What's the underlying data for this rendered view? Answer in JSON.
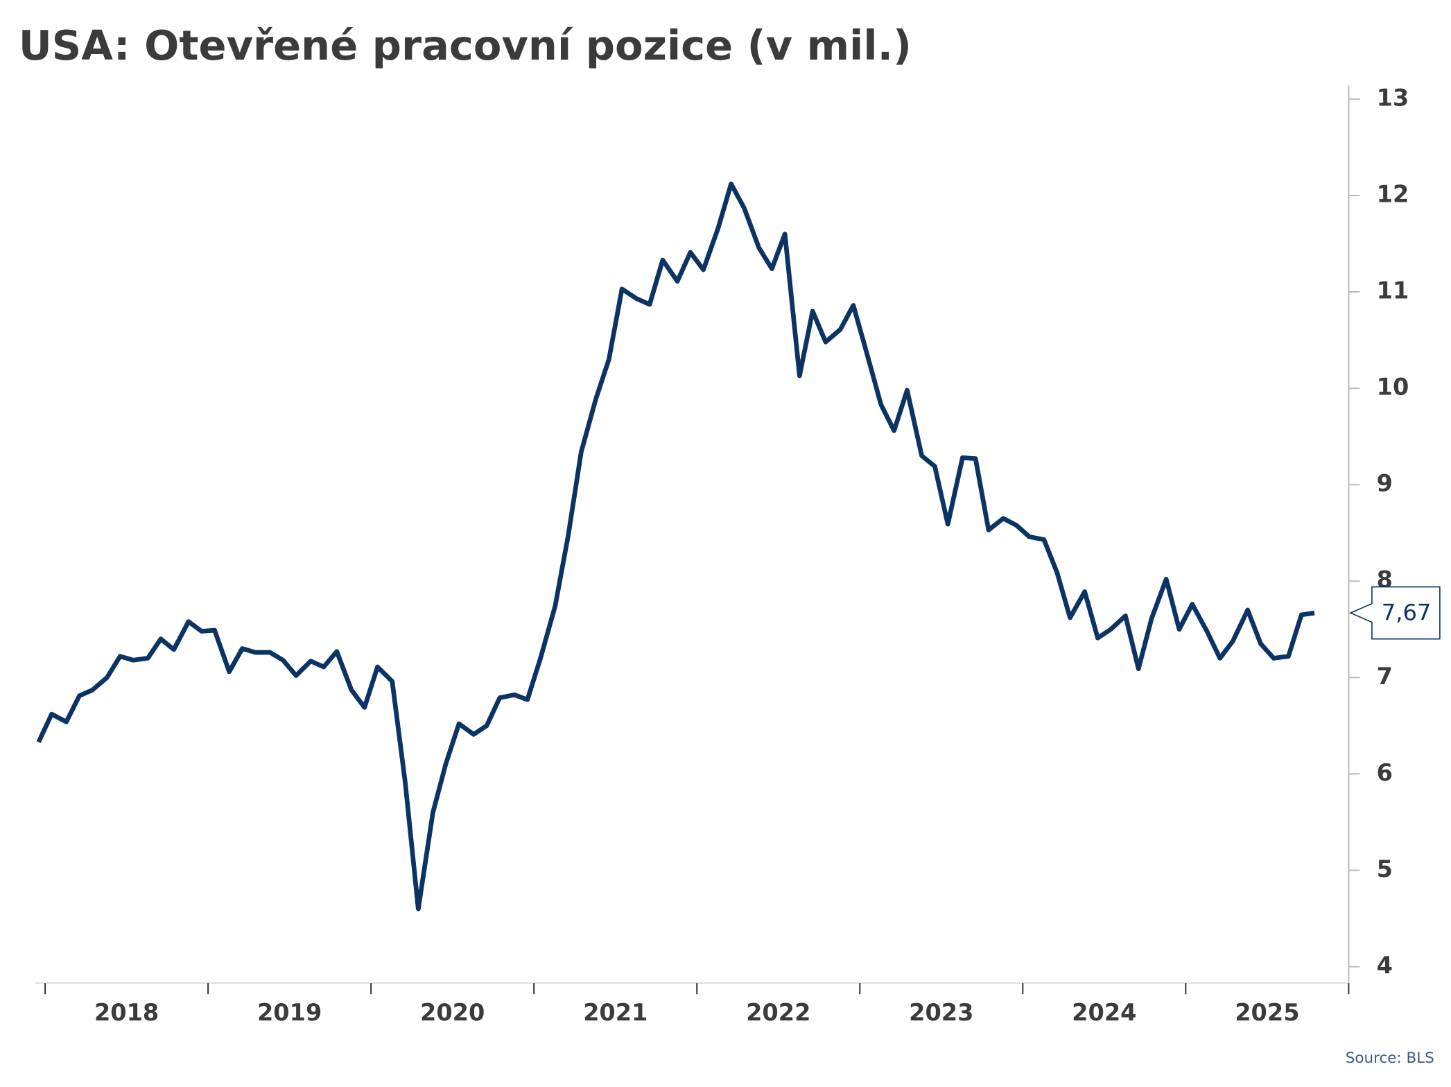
{
  "chart_data": {
    "type": "line",
    "title": "USA: Otevřené pracovní pozice (v mil.)",
    "source": "Source: BLS",
    "x": [
      2017.96,
      2018.04,
      2018.13,
      2018.21,
      2018.29,
      2018.38,
      2018.46,
      2018.54,
      2018.63,
      2018.71,
      2018.79,
      2018.88,
      2018.96,
      2019.04,
      2019.13,
      2019.21,
      2019.29,
      2019.38,
      2019.46,
      2019.54,
      2019.63,
      2019.71,
      2019.79,
      2019.88,
      2019.96,
      2020.04,
      2020.13,
      2020.21,
      2020.29,
      2020.38,
      2020.46,
      2020.54,
      2020.63,
      2020.71,
      2020.79,
      2020.88,
      2020.96,
      2021.04,
      2021.13,
      2021.21,
      2021.29,
      2021.38,
      2021.46,
      2021.54,
      2021.63,
      2021.71,
      2021.79,
      2021.88,
      2021.96,
      2022.04,
      2022.13,
      2022.21,
      2022.29,
      2022.38,
      2022.46,
      2022.54,
      2022.63,
      2022.71,
      2022.79,
      2022.88,
      2022.96,
      2023.04,
      2023.13,
      2023.21,
      2023.29,
      2023.38,
      2023.46,
      2023.54,
      2023.63,
      2023.71,
      2023.79,
      2023.88,
      2023.96,
      2024.04,
      2024.13,
      2024.21,
      2024.29,
      2024.38,
      2024.46,
      2024.54,
      2024.63,
      2024.71,
      2024.79,
      2024.88,
      2024.96,
      2025.04,
      2025.13,
      2025.21,
      2025.29,
      2025.38,
      2025.46,
      2025.54,
      2025.63,
      2025.71,
      2025.79
    ],
    "series": [
      {
        "color": "#0b3364",
        "values": [
          6.33,
          6.62,
          6.54,
          6.81,
          6.87,
          7.0,
          7.22,
          7.18,
          7.2,
          7.4,
          7.29,
          7.58,
          7.48,
          7.49,
          7.06,
          7.3,
          7.26,
          7.26,
          7.18,
          7.02,
          7.17,
          7.11,
          7.27,
          6.87,
          6.69,
          7.11,
          6.96,
          5.91,
          4.6,
          5.6,
          6.11,
          6.52,
          6.41,
          6.5,
          6.79,
          6.82,
          6.77,
          7.2,
          7.74,
          8.47,
          9.34,
          9.89,
          10.3,
          11.03,
          10.93,
          10.87,
          11.33,
          11.11,
          11.41,
          11.23,
          11.66,
          12.12,
          11.87,
          11.46,
          11.24,
          11.6,
          10.13,
          10.8,
          10.48,
          10.61,
          10.86,
          10.38,
          9.83,
          9.56,
          9.98,
          9.3,
          9.19,
          8.59,
          9.28,
          9.27,
          8.53,
          8.65,
          8.58,
          8.46,
          8.43,
          8.09,
          7.62,
          7.89,
          7.41,
          7.5,
          7.64,
          7.09,
          7.61,
          8.02,
          7.5,
          7.76,
          7.48,
          7.2,
          7.38,
          7.7,
          7.35,
          7.2,
          7.22,
          7.65,
          7.67
        ],
        "value_labels": [
          null,
          null,
          null,
          null,
          null,
          null,
          null,
          null,
          null,
          null,
          null,
          null,
          null,
          null,
          null,
          null,
          null,
          null,
          null,
          null,
          null,
          null,
          null,
          null,
          null,
          null,
          null,
          null,
          null,
          null,
          null,
          null,
          null,
          null,
          null,
          null,
          null,
          null,
          null,
          null,
          null,
          null,
          null,
          null,
          null,
          null,
          null,
          null,
          null,
          null,
          null,
          null,
          null,
          null,
          null,
          null,
          null,
          null,
          null,
          null,
          null,
          null,
          null,
          null,
          null,
          null,
          null,
          null,
          null,
          null,
          null,
          null,
          null,
          null,
          null,
          null,
          null,
          null,
          null,
          null,
          null,
          null,
          null,
          null,
          null,
          null,
          null,
          null,
          null,
          null,
          null,
          null,
          null,
          null,
          "7,67"
        ]
      }
    ],
    "xlim": [
      2017.94,
      2026
    ],
    "xticks": [
      2018,
      2019,
      2020,
      2021,
      2022,
      2023,
      2024,
      2025,
      2026
    ],
    "xtick_labels": [
      {
        "value": 2018.5,
        "label": "2018"
      },
      {
        "value": 2019.5,
        "label": "2019"
      },
      {
        "value": 2020.5,
        "label": "2020"
      },
      {
        "value": 2021.5,
        "label": "2021"
      },
      {
        "value": 2022.5,
        "label": "2022"
      },
      {
        "value": 2023.5,
        "label": "2023"
      },
      {
        "value": 2024.5,
        "label": "2024"
      },
      {
        "value": 2025.5,
        "label": "2025"
      }
    ],
    "ylim": [
      3.83,
      13.14
    ],
    "yticks": [
      4,
      5,
      6,
      7,
      8,
      9,
      10,
      11,
      12,
      13
    ],
    "y_axis_side": "right",
    "grid": false
  }
}
